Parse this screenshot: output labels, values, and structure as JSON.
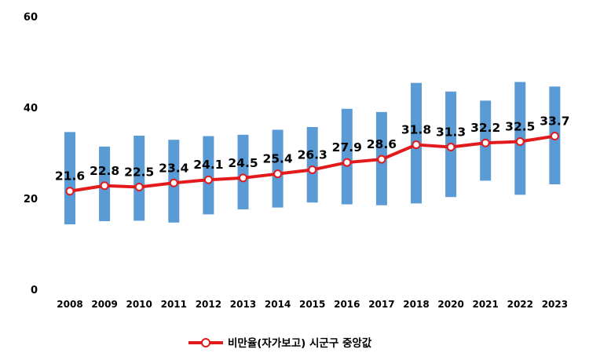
{
  "chart_data": {
    "type": "line",
    "categories": [
      "2008",
      "2009",
      "2010",
      "2011",
      "2012",
      "2013",
      "2014",
      "2015",
      "2016",
      "2017",
      "2018",
      "2020",
      "2021",
      "2022",
      "2023"
    ],
    "series": [
      {
        "name": "비만율(자가보고) 시군구 중앙값",
        "values": [
          21.6,
          22.8,
          22.5,
          23.4,
          24.1,
          24.5,
          25.4,
          26.3,
          27.9,
          28.6,
          31.8,
          31.3,
          32.2,
          32.5,
          33.7
        ],
        "color": "#e31a1c"
      }
    ],
    "ranges": {
      "low": [
        14.3,
        15.0,
        15.1,
        14.7,
        16.5,
        17.6,
        18.0,
        19.1,
        18.7,
        18.5,
        18.9,
        20.3,
        23.9,
        20.8,
        23.1
      ],
      "high": [
        34.6,
        31.4,
        33.8,
        32.9,
        33.7,
        34.0,
        35.1,
        35.7,
        39.7,
        39.0,
        45.4,
        43.5,
        41.5,
        45.6,
        44.6
      ],
      "color": "#5b9bd5"
    },
    "yticks": [
      "0",
      "20",
      "40",
      "60"
    ],
    "ylim": [
      0,
      60
    ],
    "grid": false,
    "legend": "bottom-center",
    "title": "",
    "xlabel": "",
    "ylabel": ""
  }
}
